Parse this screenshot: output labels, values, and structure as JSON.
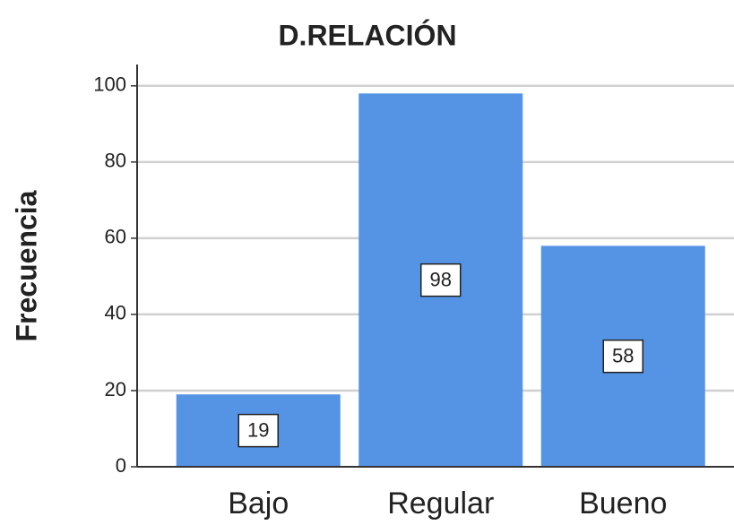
{
  "chart_data": {
    "type": "bar",
    "title": "D.RELACIÓN",
    "y_label": "Frecuencia",
    "categories": [
      "Bajo",
      "Regular",
      "Bueno"
    ],
    "values": [
      19,
      98,
      58
    ],
    "color": "#5594e4",
    "ylim": [
      0,
      105.6
    ],
    "yticks": [
      0,
      20,
      40,
      60,
      80,
      100
    ],
    "grid": true
  }
}
